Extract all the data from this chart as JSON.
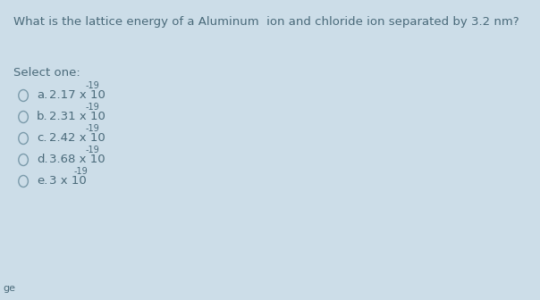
{
  "background_color": "#ccdde8",
  "question": "What is the lattice energy of a Aluminum  ion and chloride ion separated by 3.2 nm?",
  "select_one_label": "Select one:",
  "options": [
    {
      "label": "a.",
      "main": "2.17 x 10",
      "superscript": "-19"
    },
    {
      "label": "b.",
      "main": "2.31 x 10",
      "superscript": "-19"
    },
    {
      "label": "c.",
      "main": "2.42 x 10",
      "superscript": "-19"
    },
    {
      "label": "d.",
      "main": "3.68 x 10",
      "superscript": "-19"
    },
    {
      "label": "e.",
      "main": "3 x 10",
      "superscript": "-19"
    }
  ],
  "question_font_size": 9.5,
  "option_font_size": 9.5,
  "select_font_size": 9.5,
  "superscript_font_size": 7.0,
  "text_color": "#4a6a7a",
  "circle_edge_color": "#7a9aaa",
  "footer_text": "ge",
  "footer_font_size": 8,
  "fig_width": 6.04,
  "fig_height": 3.36,
  "dpi": 100
}
